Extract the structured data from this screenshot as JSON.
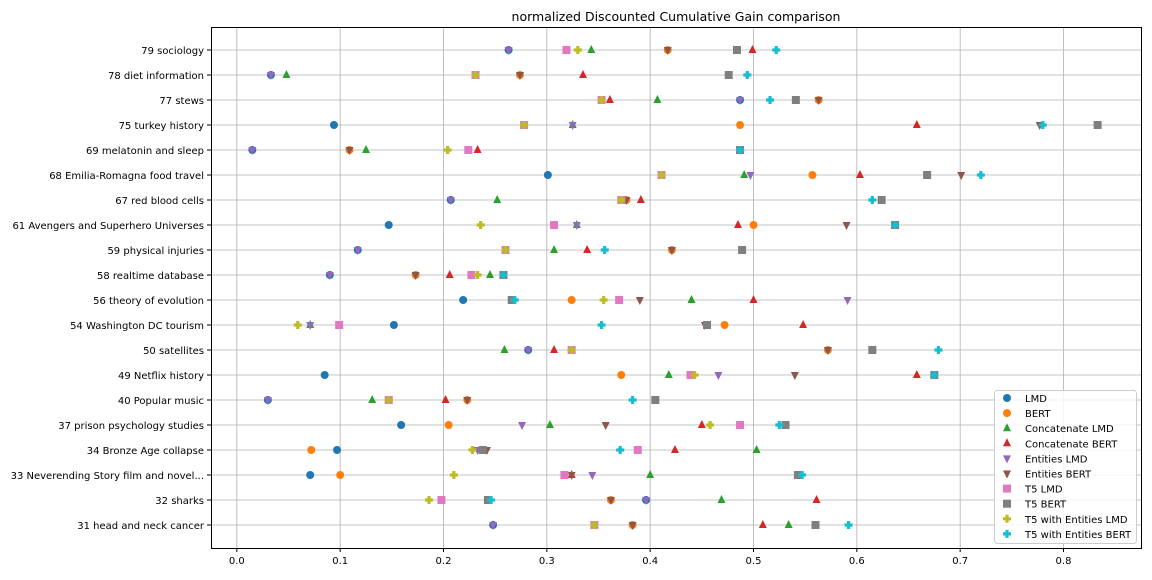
{
  "chart_data": {
    "type": "scatter",
    "title": "normalized Discounted Cumulative Gain comparison",
    "xlabel": "",
    "ylabel": "",
    "xlim": [
      -0.025,
      0.875
    ],
    "xticks": [
      "0.0",
      "0.1",
      "0.2",
      "0.3",
      "0.4",
      "0.5",
      "0.6",
      "0.7",
      "0.8"
    ],
    "grid": true,
    "legend_position": "bottom-right",
    "categories": [
      "79 sociology",
      "78 diet information",
      "77 stews",
      "75 turkey history",
      "69 melatonin and sleep",
      "68 Emilia-Romagna food travel",
      "67 red blood cells",
      "61 Avengers and Superhero Universes",
      "59 physical injuries",
      "58 realtime database",
      "56 theory of evolution",
      "54 Washington DC tourism",
      "50 satellites",
      "49 Netflix history",
      "40 Popular music",
      "37 prison psychology studies",
      "34 Bronze Age collapse",
      "33 Neverending Story film and novel...",
      "32 sharks",
      "31 head and neck cancer"
    ],
    "series": [
      {
        "name": "LMD",
        "color": "#1f77b4",
        "marker": "circle",
        "values": [
          0.263,
          0.033,
          0.487,
          0.094,
          0.015,
          0.301,
          0.207,
          0.147,
          0.117,
          0.09,
          0.219,
          0.152,
          0.282,
          0.085,
          0.03,
          0.159,
          0.097,
          0.071,
          0.396,
          0.248
        ]
      },
      {
        "name": "BERT",
        "color": "#ff7f0e",
        "marker": "circle",
        "values": [
          0.417,
          0.274,
          0.563,
          0.487,
          0.109,
          0.557,
          0.377,
          0.5,
          0.421,
          0.173,
          0.324,
          0.472,
          0.572,
          0.372,
          0.223,
          0.205,
          0.072,
          0.1,
          0.362,
          0.383
        ]
      },
      {
        "name": "Concatenate LMD",
        "color": "#2ca02c",
        "marker": "triangle-up",
        "values": [
          0.343,
          0.048,
          0.407,
          0.325,
          0.125,
          0.491,
          0.252,
          0.329,
          0.307,
          0.245,
          0.44,
          0.071,
          0.259,
          0.418,
          0.131,
          0.303,
          0.503,
          0.4,
          0.469,
          0.534
        ]
      },
      {
        "name": "Concatenate BERT",
        "color": "#d62728",
        "marker": "triangle-up",
        "values": [
          0.499,
          0.335,
          0.361,
          0.658,
          0.233,
          0.603,
          0.391,
          0.485,
          0.339,
          0.206,
          0.5,
          0.548,
          0.307,
          0.658,
          0.202,
          0.45,
          0.424,
          0.324,
          0.561,
          0.509
        ]
      },
      {
        "name": "Entities LMD",
        "color": "#9467bd",
        "marker": "triangle-down",
        "values": [
          0.263,
          0.033,
          0.487,
          0.325,
          0.015,
          0.497,
          0.207,
          0.329,
          0.117,
          0.09,
          0.591,
          0.071,
          0.282,
          0.466,
          0.03,
          0.276,
          0.233,
          0.344,
          0.396,
          0.248
        ]
      },
      {
        "name": "Entities BERT",
        "color": "#8c564b",
        "marker": "triangle-down",
        "values": [
          0.417,
          0.274,
          0.563,
          0.777,
          0.109,
          0.701,
          0.377,
          0.59,
          0.421,
          0.173,
          0.39,
          0.453,
          0.572,
          0.54,
          0.223,
          0.357,
          0.242,
          0.324,
          0.362,
          0.383
        ]
      },
      {
        "name": "T5 LMD",
        "color": "#e377c2",
        "marker": "square",
        "values": [
          0.319,
          0.231,
          0.353,
          0.278,
          0.224,
          0.411,
          0.372,
          0.307,
          0.26,
          0.227,
          0.37,
          0.099,
          0.324,
          0.439,
          0.147,
          0.487,
          0.388,
          0.317,
          0.198,
          0.346
        ]
      },
      {
        "name": "T5 BERT",
        "color": "#7f7f7f",
        "marker": "square",
        "values": [
          0.484,
          0.476,
          0.541,
          0.833,
          0.487,
          0.668,
          0.624,
          0.637,
          0.489,
          0.258,
          0.266,
          0.455,
          0.615,
          0.675,
          0.405,
          0.531,
          0.238,
          0.543,
          0.243,
          0.56
        ]
      },
      {
        "name": "T5 with Entities LMD",
        "color": "#bcbd22",
        "marker": "plus",
        "values": [
          0.33,
          0.231,
          0.353,
          0.278,
          0.204,
          0.411,
          0.372,
          0.236,
          0.26,
          0.233,
          0.355,
          0.059,
          0.324,
          0.443,
          0.147,
          0.458,
          0.228,
          0.21,
          0.186,
          0.346
        ]
      },
      {
        "name": "T5 with Entities BERT",
        "color": "#17becf",
        "marker": "plus",
        "values": [
          0.522,
          0.494,
          0.516,
          0.78,
          0.487,
          0.72,
          0.615,
          0.637,
          0.356,
          0.258,
          0.269,
          0.353,
          0.679,
          0.675,
          0.383,
          0.525,
          0.371,
          0.547,
          0.246,
          0.592
        ]
      }
    ]
  }
}
